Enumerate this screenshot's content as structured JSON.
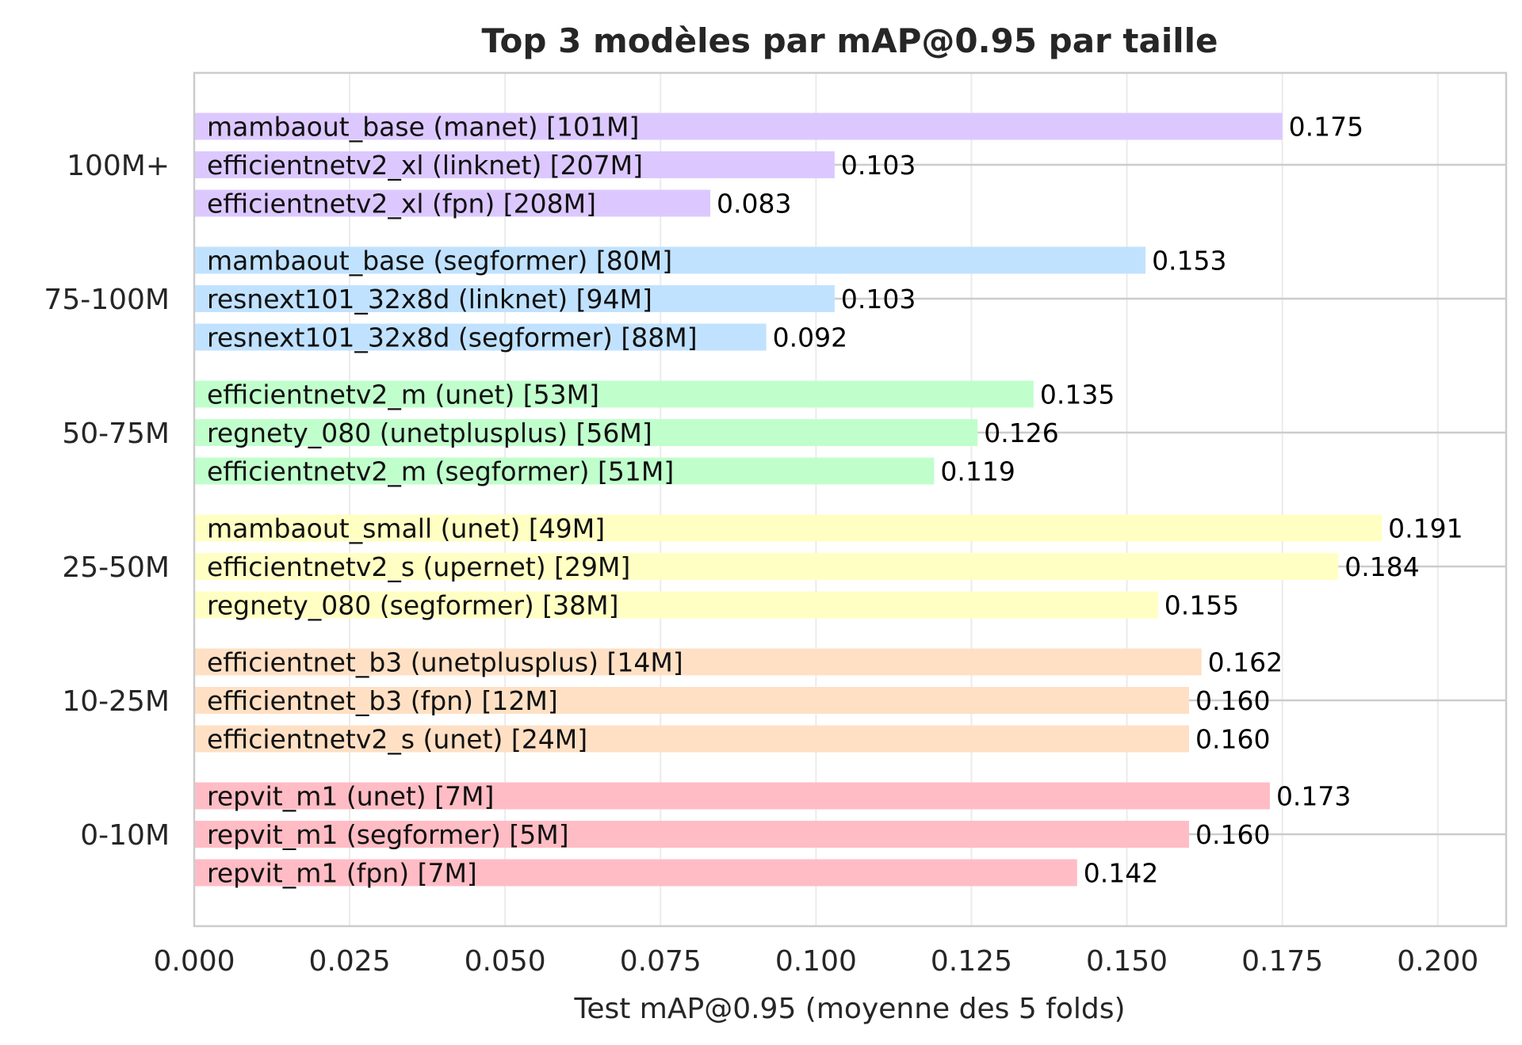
{
  "chart_data": {
    "type": "bar",
    "orientation": "horizontal",
    "title": "Top 3 modèles par mAP@0.95 par taille",
    "xlabel": "Test mAP@0.95 (moyenne des 5 folds)",
    "ylabel": "",
    "xlim": [
      0,
      0.211
    ],
    "x_ticks": [
      "0.000",
      "0.025",
      "0.050",
      "0.075",
      "0.100",
      "0.125",
      "0.150",
      "0.175",
      "0.200"
    ],
    "x_tick_values": [
      0,
      0.025,
      0.05,
      0.075,
      0.1,
      0.125,
      0.15,
      0.175,
      0.2
    ],
    "grid": true,
    "groups": [
      {
        "name": "100M+",
        "color": "#dcc8ff",
        "bars": [
          {
            "label": "mambaout_base (manet) [101M]",
            "value": 0.175,
            "value_label": "0.175"
          },
          {
            "label": "efficientnetv2_xl (linknet) [207M]",
            "value": 0.103,
            "value_label": "0.103"
          },
          {
            "label": "efficientnetv2_xl (fpn) [208M]",
            "value": 0.083,
            "value_label": "0.083"
          }
        ]
      },
      {
        "name": "75-100M",
        "color": "#c0e2ff",
        "bars": [
          {
            "label": "mambaout_base (segformer) [80M]",
            "value": 0.153,
            "value_label": "0.153"
          },
          {
            "label": "resnext101_32x8d (linknet) [94M]",
            "value": 0.103,
            "value_label": "0.103"
          },
          {
            "label": "resnext101_32x8d (segformer) [88M]",
            "value": 0.092,
            "value_label": "0.092"
          }
        ]
      },
      {
        "name": "50-75M",
        "color": "#c0ffcc",
        "bars": [
          {
            "label": "efficientnetv2_m (unet) [53M]",
            "value": 0.135,
            "value_label": "0.135"
          },
          {
            "label": "regnety_080 (unetplusplus) [56M]",
            "value": 0.126,
            "value_label": "0.126"
          },
          {
            "label": "efficientnetv2_m (segformer) [51M]",
            "value": 0.119,
            "value_label": "0.119"
          }
        ]
      },
      {
        "name": "25-50M",
        "color": "#ffffc4",
        "bars": [
          {
            "label": "mambaout_small (unet) [49M]",
            "value": 0.191,
            "value_label": "0.191"
          },
          {
            "label": "efficientnetv2_s (upernet) [29M]",
            "value": 0.184,
            "value_label": "0.184"
          },
          {
            "label": "regnety_080 (segformer) [38M]",
            "value": 0.155,
            "value_label": "0.155"
          }
        ]
      },
      {
        "name": "10-25M",
        "color": "#ffe0c4",
        "bars": [
          {
            "label": "efficientnet_b3 (unetplusplus) [14M]",
            "value": 0.162,
            "value_label": "0.162"
          },
          {
            "label": "efficientnet_b3 (fpn) [12M]",
            "value": 0.16,
            "value_label": "0.160"
          },
          {
            "label": "efficientnetv2_s (unet) [24M]",
            "value": 0.16,
            "value_label": "0.160"
          }
        ]
      },
      {
        "name": "0-10M",
        "color": "#ffbcc4",
        "bars": [
          {
            "label": "repvit_m1 (unet) [7M]",
            "value": 0.173,
            "value_label": "0.173"
          },
          {
            "label": "repvit_m1 (segformer) [5M]",
            "value": 0.16,
            "value_label": "0.160"
          },
          {
            "label": "repvit_m1 (fpn) [7M]",
            "value": 0.142,
            "value_label": "0.142"
          }
        ]
      }
    ]
  }
}
